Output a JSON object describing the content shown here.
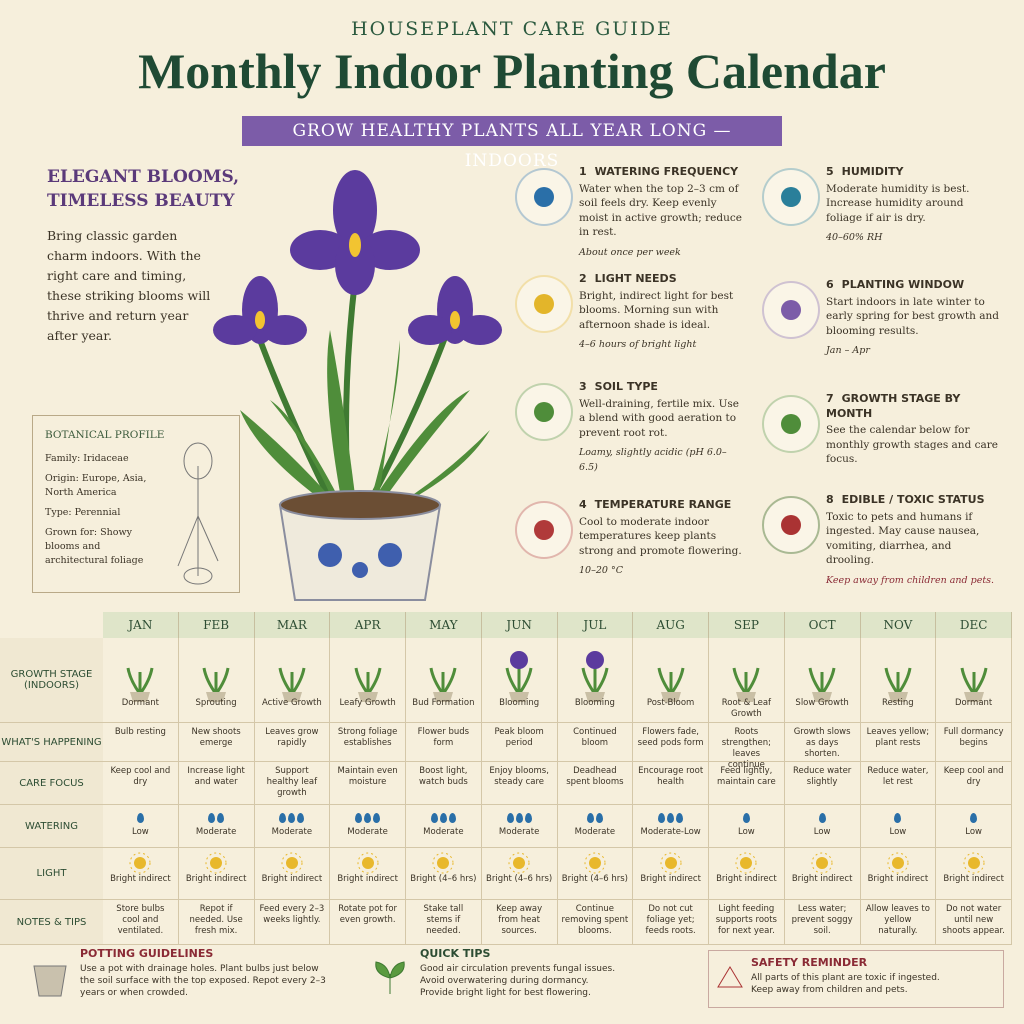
{
  "header": {
    "kicker": "HOUSEPLANT CARE GUIDE",
    "title": "Monthly Indoor Planting Calendar",
    "banner": "GROW HEALTHY PLANTS ALL YEAR LONG — INDOORS"
  },
  "intro": {
    "heading": "ELEGANT BLOOMS, TIMELESS BEAUTY",
    "text": "Bring classic garden charm indoors. With the right care and timing, these striking blooms will thrive and return year after year."
  },
  "profile": {
    "title": "BOTANICAL PROFILE",
    "items": [
      "Family: Iridaceae",
      "Origin: Europe, Asia, North America",
      "Type: Perennial",
      "Grown for: Showy blooms and architectural foliage"
    ]
  },
  "care": [
    {
      "number": "1",
      "title": "WATERING FREQUENCY",
      "text": "Water when the top 2–3 cm of soil feels dry. Keep evenly moist in active growth; reduce in rest.",
      "note": "About once per week"
    },
    {
      "number": "2",
      "title": "LIGHT NEEDS",
      "text": "Bright, indirect light for best blooms. Morning sun with afternoon shade is ideal.",
      "note": "4–6 hours of bright light"
    },
    {
      "number": "3",
      "title": "SOIL TYPE",
      "text": "Well-draining, fertile mix. Use a blend with good aeration to prevent root rot.",
      "note": "Loamy, slightly acidic (pH 6.0–6.5)"
    },
    {
      "number": "4",
      "title": "TEMPERATURE RANGE",
      "text": "Cool to moderate indoor temperatures keep plants strong and promote flowering.",
      "note": "10–20 °C"
    },
    {
      "number": "5",
      "title": "HUMIDITY",
      "text": "Moderate humidity is best. Increase humidity around foliage if air is dry.",
      "note": "40–60% RH"
    },
    {
      "number": "6",
      "title": "PLANTING WINDOW",
      "text": "Start indoors in late winter to early spring for best growth and blooming results.",
      "note": "Jan – Apr"
    },
    {
      "number": "7",
      "title": "GROWTH STAGE BY MONTH",
      "text": "See the calendar below for monthly growth stages and care focus.",
      "note": null
    },
    {
      "number": "8",
      "title": "EDIBLE / TOXIC STATUS",
      "text": "Toxic to pets and humans if ingested. May cause nausea, vomiting, diarrhea, and drooling.",
      "note": "Keep away from children and pets."
    }
  ],
  "calendar": {
    "months": [
      "JAN",
      "FEB",
      "MAR",
      "APR",
      "MAY",
      "JUN",
      "JUL",
      "AUG",
      "SEP",
      "OCT",
      "NOV",
      "DEC"
    ],
    "rows": [
      {
        "label": "GROWTH STAGE (INDOORS)",
        "cells": [
          "Dormant",
          "Sprouting",
          "Active Growth",
          "Leafy Growth",
          "Bud Formation",
          "Blooming",
          "Blooming",
          "Post-Bloom",
          "Root & Leaf Growth",
          "Slow Growth",
          "Resting",
          "Dormant"
        ]
      },
      {
        "label": "WHAT'S HAPPENING",
        "cells": [
          "Bulb resting",
          "New shoots emerge",
          "Leaves grow rapidly",
          "Strong foliage establishes",
          "Flower buds form",
          "Peak bloom period",
          "Continued bloom",
          "Flowers fade, seed pods form",
          "Roots strengthen; leaves continue",
          "Growth slows as days shorten.",
          "Leaves yellow; plant rests",
          "Full dormancy begins"
        ]
      },
      {
        "label": "CARE FOCUS",
        "cells": [
          "Keep cool and dry",
          "Increase light and water",
          "Support healthy leaf growth",
          "Maintain even moisture",
          "Boost light, watch buds",
          "Enjoy blooms, steady care",
          "Deadhead spent blooms",
          "Encourage root health",
          "Feed lightly, maintain care",
          "Reduce water slightly",
          "Reduce water, let rest",
          "Keep cool and dry"
        ]
      },
      {
        "label": "WATERING",
        "cells": [
          "Low",
          "Moderate",
          "Moderate",
          "Moderate",
          "Moderate",
          "Moderate",
          "Moderate",
          "Moderate-Low",
          "Low",
          "Low",
          "Low",
          "Low"
        ]
      },
      {
        "label": "LIGHT",
        "cells": [
          "Bright indirect",
          "Bright indirect",
          "Bright indirect",
          "Bright indirect",
          "Bright (4–6 hrs)",
          "Bright (4–6 hrs)",
          "Bright (4–6 hrs)",
          "Bright indirect",
          "Bright indirect",
          "Bright indirect",
          "Bright indirect",
          "Bright indirect"
        ]
      },
      {
        "label": "NOTES & TIPS",
        "cells": [
          "Store bulbs cool and ventilated.",
          "Repot if needed. Use fresh mix.",
          "Feed every 2–3 weeks lightly.",
          "Rotate pot for even growth.",
          "Stake tall stems if needed.",
          "Keep away from heat sources.",
          "Continue removing spent blooms.",
          "Do not cut foliage yet; feeds roots.",
          "Light feeding supports roots for next year.",
          "Less water; prevent soggy soil.",
          "Allow leaves to yellow naturally.",
          "Do not water until new shoots appear."
        ]
      }
    ]
  },
  "footer": {
    "potting": {
      "title": "POTTING GUIDELINES",
      "text": "Use a pot with drainage holes. Plant bulbs just below the soil surface with the top exposed. Repot every 2–3 years or when crowded."
    },
    "tips": {
      "title": "QUICK TIPS",
      "items": [
        "Good air circulation prevents fungal issues.",
        "Avoid overwatering during dormancy.",
        "Provide bright light for best flowering."
      ]
    },
    "safety": {
      "title": "SAFETY REMINDER",
      "text": "All parts of this plant are toxic if ingested. Keep away from children and pets."
    }
  }
}
